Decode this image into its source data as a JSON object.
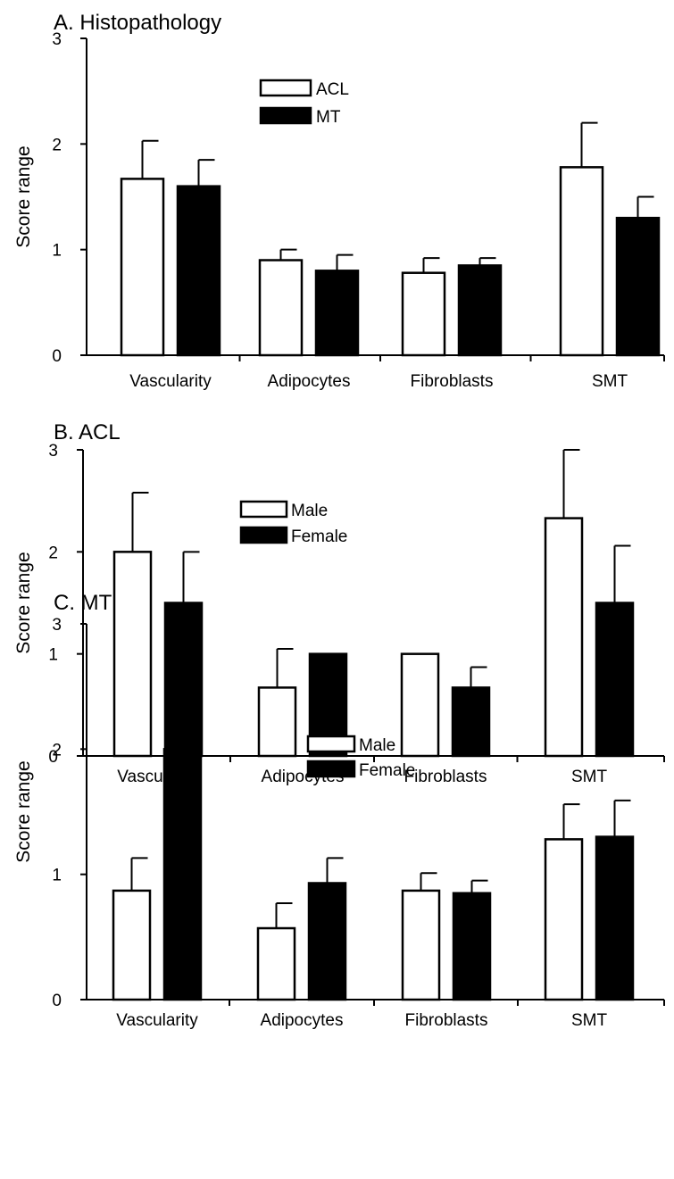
{
  "chart_data": [
    {
      "type": "bar",
      "title": "A. Histopathology",
      "ylabel": "Score range",
      "xlabel": "",
      "ylim": [
        0,
        3
      ],
      "yticks": [
        "0",
        "1",
        "2",
        "3"
      ],
      "categories": [
        "Vascularity",
        "Adipocytes",
        "Fibroblasts",
        "SMT"
      ],
      "legend_position": "top-center",
      "grid": false,
      "series": [
        {
          "name": "ACL",
          "fill": "#ffffff",
          "values": [
            1.67,
            0.9,
            0.78,
            1.78
          ],
          "errors": [
            0.36,
            0.1,
            0.14,
            0.42
          ]
        },
        {
          "name": "MT",
          "fill": "#000000",
          "values": [
            1.6,
            0.8,
            0.85,
            1.3
          ],
          "errors": [
            0.25,
            0.15,
            0.07,
            0.2
          ]
        }
      ],
      "annotations": []
    },
    {
      "type": "bar",
      "title": "B. ACL",
      "ylabel": "Score range",
      "xlabel": "",
      "ylim": [
        0,
        3
      ],
      "yticks": [
        "0",
        "1",
        "2",
        "3"
      ],
      "categories": [
        "Vascularity",
        "Adipocytes",
        "Fibroblasts",
        "SMT"
      ],
      "legend_position": "top-center",
      "grid": false,
      "series": [
        {
          "name": "Male",
          "fill": "#ffffff",
          "values": [
            2.0,
            0.67,
            1.0,
            2.33
          ],
          "errors": [
            0.58,
            0.38,
            0.0,
            0.67
          ]
        },
        {
          "name": "Female",
          "fill": "#000000",
          "values": [
            1.5,
            1.0,
            0.67,
            1.5
          ],
          "errors": [
            0.5,
            0.0,
            0.2,
            0.56
          ]
        }
      ],
      "annotations": []
    },
    {
      "type": "bar",
      "title": "C. MT",
      "ylabel": "Score range",
      "xlabel": "",
      "ylim": [
        0,
        3
      ],
      "yticks": [
        "0",
        "1",
        "2",
        "3"
      ],
      "categories": [
        "Vascularity",
        "Adipocytes",
        "Fibroblasts",
        "SMT"
      ],
      "legend_position": "top-center",
      "grid": false,
      "series": [
        {
          "name": "Male",
          "fill": "#ffffff",
          "values": [
            0.87,
            0.57,
            0.87,
            1.28
          ],
          "errors": [
            0.26,
            0.2,
            0.14,
            0.28
          ]
        },
        {
          "name": "Female",
          "fill": "#000000",
          "values": [
            2.0,
            0.93,
            0.85,
            1.3
          ],
          "errors": [
            0.33,
            0.2,
            0.1,
            0.29
          ]
        }
      ],
      "annotations": [
        {
          "text": "*",
          "category": "Vascularity",
          "series": "Female"
        }
      ]
    }
  ]
}
